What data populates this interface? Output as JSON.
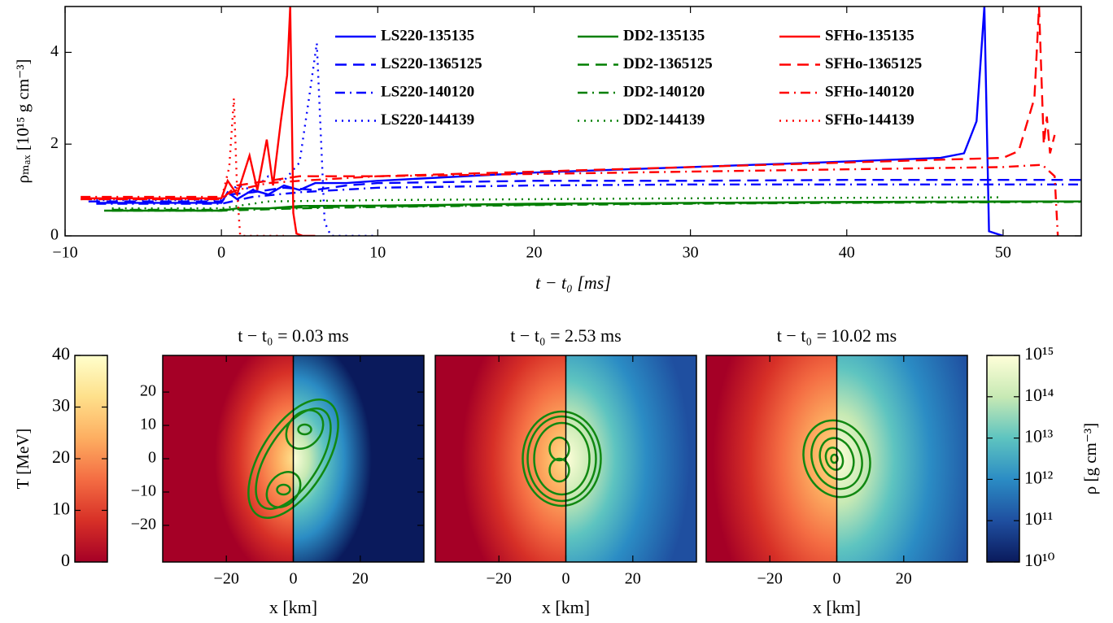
{
  "chart_data": [
    {
      "type": "line",
      "xlabel": "t − t₀ [ms]",
      "ylabel": "ρₘₐₓ [10¹⁵ g cm⁻³]",
      "xlim": [
        -10,
        55
      ],
      "ylim": [
        0,
        5
      ],
      "xticks": [
        {
          "value": -10,
          "label": "−10"
        },
        0,
        10,
        20,
        30,
        40,
        50
      ],
      "yticks": [
        0,
        2,
        4
      ],
      "legend": "upper right",
      "series": [
        {
          "name": "LS220-135135",
          "color": "#0000ff",
          "linestyle": "solid",
          "x": [
            -8,
            -4,
            0,
            0.4,
            1,
            2,
            3,
            4,
            5,
            6,
            8,
            10,
            20,
            30,
            40,
            46,
            47.5,
            48.3,
            48.8,
            49.1,
            50
          ],
          "values": [
            0.72,
            0.72,
            0.72,
            0.95,
            0.8,
            1.0,
            0.9,
            1.1,
            1.0,
            1.15,
            1.15,
            1.2,
            1.38,
            1.5,
            1.62,
            1.7,
            1.8,
            2.5,
            5,
            0.1,
            0
          ]
        },
        {
          "name": "LS220-1365125",
          "color": "#0000ff",
          "linestyle": "dashed",
          "x": [
            -8.5,
            0,
            0.5,
            2,
            4,
            6,
            8,
            10,
            20,
            30,
            40,
            50,
            55
          ],
          "values": [
            0.75,
            0.75,
            0.9,
            0.95,
            1.05,
            1.0,
            1.1,
            1.15,
            1.2,
            1.2,
            1.22,
            1.22,
            1.22
          ]
        },
        {
          "name": "LS220-140120",
          "color": "#0000ff",
          "linestyle": "dashdot",
          "x": [
            -8,
            0,
            2,
            5,
            10,
            20,
            30,
            40,
            50,
            55
          ],
          "values": [
            0.7,
            0.7,
            0.85,
            0.95,
            1.05,
            1.1,
            1.12,
            1.12,
            1.12,
            1.12
          ]
        },
        {
          "name": "LS220-144139",
          "color": "#0000ff",
          "linestyle": "dotted",
          "x": [
            -8,
            0,
            1,
            2,
            3,
            4,
            5,
            5.6,
            6.1,
            6.6,
            7,
            10
          ],
          "values": [
            0.78,
            0.78,
            1.1,
            1.0,
            1.3,
            1.2,
            1.6,
            3.0,
            4.2,
            0.3,
            0,
            0
          ]
        },
        {
          "name": "DD2-135135",
          "color": "#007f00",
          "linestyle": "solid",
          "x": [
            -7.5,
            0,
            1,
            3,
            5,
            10,
            20,
            30,
            40,
            50,
            55
          ],
          "values": [
            0.55,
            0.55,
            0.6,
            0.6,
            0.65,
            0.66,
            0.7,
            0.72,
            0.74,
            0.75,
            0.75
          ]
        },
        {
          "name": "DD2-1365125",
          "color": "#007f00",
          "linestyle": "dashed",
          "x": [
            -7,
            0,
            5,
            10,
            20,
            30,
            40,
            55
          ],
          "values": [
            0.57,
            0.57,
            0.62,
            0.64,
            0.68,
            0.71,
            0.73,
            0.75
          ]
        },
        {
          "name": "DD2-140120",
          "color": "#007f00",
          "linestyle": "dashdot",
          "x": [
            -7,
            0,
            5,
            10,
            20,
            30,
            40,
            55
          ],
          "values": [
            0.55,
            0.55,
            0.6,
            0.63,
            0.67,
            0.7,
            0.72,
            0.74
          ]
        },
        {
          "name": "DD2-144139",
          "color": "#007f00",
          "linestyle": "dotted",
          "x": [
            -7,
            0,
            3,
            10,
            20,
            30,
            40,
            50
          ],
          "values": [
            0.6,
            0.6,
            0.75,
            0.78,
            0.8,
            0.82,
            0.83,
            0.84
          ]
        },
        {
          "name": "SFHo-135135",
          "color": "#ff0000",
          "linestyle": "solid",
          "x": [
            -9,
            0,
            0.4,
            1,
            1.8,
            2.3,
            2.9,
            3.3,
            3.8,
            4.2,
            4.4,
            4.6,
            4.8,
            5.2,
            6
          ],
          "values": [
            0.82,
            0.82,
            1.2,
            0.9,
            1.75,
            1.0,
            2.1,
            1.1,
            2.5,
            3.5,
            5,
            0.5,
            0.05,
            0,
            0
          ]
        },
        {
          "name": "SFHo-1365125",
          "color": "#ff0000",
          "linestyle": "dashed",
          "x": [
            -9,
            0,
            1,
            3,
            5,
            10,
            20,
            30,
            40,
            45,
            50,
            51,
            52,
            52.3,
            52.6,
            52.8,
            53,
            53.3
          ],
          "values": [
            0.8,
            0.8,
            1.1,
            1.2,
            1.3,
            1.3,
            1.4,
            1.5,
            1.6,
            1.65,
            1.7,
            1.85,
            3,
            5,
            2.0,
            2.6,
            1.8,
            2.2
          ]
        },
        {
          "name": "SFHo-140120",
          "color": "#ff0000",
          "linestyle": "dashdot",
          "x": [
            -9,
            0,
            1,
            3,
            5,
            10,
            20,
            30,
            40,
            50,
            52.5,
            53.3,
            53.5
          ],
          "values": [
            0.85,
            0.85,
            1.0,
            1.15,
            1.2,
            1.3,
            1.35,
            1.4,
            1.45,
            1.5,
            1.55,
            1.3,
            0
          ]
        },
        {
          "name": "SFHo-144139",
          "color": "#ff0000",
          "linestyle": "dotted",
          "x": [
            -9,
            0,
            0.5,
            0.8,
            1.0,
            1.2,
            2,
            4
          ],
          "values": [
            0.8,
            0.8,
            1.5,
            3.0,
            1.0,
            0,
            0,
            0
          ]
        }
      ]
    },
    {
      "type": "heatmap",
      "title": "t − t₀ = 0.03 ms",
      "xlabel": "x [km]",
      "xlim": [
        -39,
        39
      ],
      "ylim": [
        -31,
        31
      ],
      "xticks": [
        {
          "value": -20,
          "label": "−20"
        },
        0,
        20
      ],
      "yticks": [
        {
          "value": -20,
          "label": "−20"
        },
        {
          "value": -10,
          "label": "−10"
        },
        0,
        10,
        20
      ]
    },
    {
      "type": "heatmap",
      "title": "t − t₀ = 2.53 ms",
      "xlabel": "x [km]",
      "xlim": [
        -39,
        39
      ],
      "xticks": [
        {
          "value": -20,
          "label": "−20"
        },
        0,
        20
      ]
    },
    {
      "type": "heatmap",
      "title": "t − t₀ = 10.02 ms",
      "xlabel": "x [km]",
      "xlim": [
        -39,
        39
      ],
      "xticks": [
        {
          "value": -20,
          "label": "−20"
        },
        0,
        20
      ]
    },
    {
      "type": "colorbar",
      "label": "T [MeV]",
      "ticks_side": "left",
      "ylim": [
        0,
        40
      ],
      "yticks": [
        0,
        10,
        20,
        30,
        40
      ],
      "colors": [
        "#a50026",
        "#d73027",
        "#f46d43",
        "#fdae61",
        "#fee08b",
        "#ffffcc"
      ]
    },
    {
      "type": "colorbar",
      "label": "ρ [g cm⁻³]",
      "ticks_side": "right",
      "log": true,
      "ylim": [
        10000000000,
        1000000000000000
      ],
      "yticks": [
        {
          "value": 10000000000,
          "label": "10¹⁰"
        },
        {
          "value": 100000000000,
          "label": "10¹¹"
        },
        {
          "value": 1000000000000,
          "label": "10¹²"
        },
        {
          "value": 10000000000000,
          "label": "10¹³"
        },
        {
          "value": 100000000000000,
          "label": "10¹⁴"
        },
        {
          "value": 1000000000000000,
          "label": "10¹⁵"
        }
      ],
      "colors": [
        "#0a1a5c",
        "#1f4fa0",
        "#2b8cc4",
        "#5ec4c0",
        "#c7e9b4",
        "#ffffd9"
      ]
    }
  ]
}
